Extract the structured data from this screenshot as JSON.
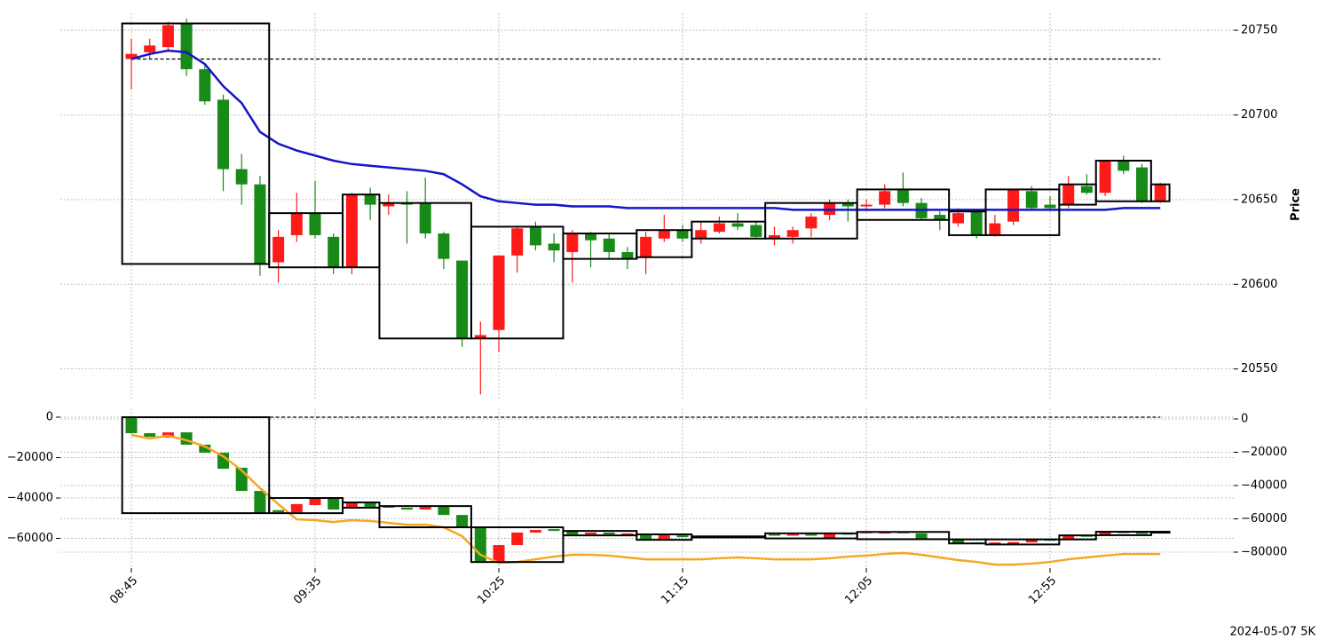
{
  "footer": "2024-05-07 5K",
  "chart_data": [
    {
      "type": "candlestick",
      "ylabel": "Price",
      "ylim": [
        20532,
        20760
      ],
      "yticks": [
        20550,
        20600,
        20650,
        20700,
        20750
      ],
      "grid": true,
      "up_color": "#ff1a1a",
      "down_color": "#178a17",
      "open": [
        20733,
        20737,
        20740,
        20754,
        20727,
        20709,
        20668,
        20659,
        20613,
        20629,
        20642,
        20628,
        20610,
        20653,
        20646,
        20648,
        20648,
        20630,
        20614,
        20568,
        20573,
        20617,
        20634,
        20624,
        20619,
        20630,
        20627,
        20619,
        20616,
        20627,
        20632,
        20627,
        20631,
        20636,
        20635,
        20627,
        20628,
        20633,
        20641,
        20648,
        20646,
        20647,
        20656,
        20648,
        20641,
        20636,
        20643,
        20629,
        20637,
        20655,
        20647,
        20647,
        20658,
        20654,
        20673,
        20669,
        20649
      ],
      "high": [
        20745,
        20745,
        20755,
        20757,
        20729,
        20712,
        20677,
        20664,
        20632,
        20654,
        20661,
        20630,
        20654,
        20657,
        20653,
        20655,
        20663,
        20631,
        20614,
        20578,
        20617,
        20634,
        20637,
        20630,
        20632,
        20631,
        20630,
        20622,
        20631,
        20641,
        20635,
        20637,
        20640,
        20642,
        20637,
        20634,
        20634,
        20642,
        20650,
        20650,
        20650,
        20659,
        20666,
        20651,
        20643,
        20645,
        20644,
        20641,
        20656,
        20658,
        20652,
        20664,
        20665,
        20673,
        20676,
        20671,
        20660
      ],
      "low": [
        20715,
        20733,
        20738,
        20723,
        20706,
        20655,
        20647,
        20605,
        20601,
        20625,
        20627,
        20606,
        20606,
        20638,
        20641,
        20624,
        20627,
        20609,
        20563,
        20535,
        20560,
        20607,
        20620,
        20613,
        20601,
        20610,
        20615,
        20609,
        20606,
        20625,
        20625,
        20624,
        20630,
        20632,
        20627,
        20623,
        20624,
        20628,
        20638,
        20637,
        20643,
        20645,
        20646,
        20638,
        20632,
        20634,
        20627,
        20628,
        20635,
        20644,
        20643,
        20645,
        20653,
        20652,
        20665,
        20648,
        20648
      ],
      "close": [
        20736,
        20741,
        20753,
        20727,
        20708,
        20668,
        20659,
        20612,
        20628,
        20642,
        20629,
        20610,
        20653,
        20647,
        20648,
        20647,
        20630,
        20615,
        20568,
        20570,
        20617,
        20633,
        20623,
        20620,
        20630,
        20626,
        20619,
        20615,
        20628,
        20632,
        20627,
        20632,
        20636,
        20634,
        20628,
        20629,
        20632,
        20640,
        20648,
        20646,
        20647,
        20655,
        20648,
        20639,
        20638,
        20642,
        20629,
        20636,
        20656,
        20645,
        20645,
        20659,
        20654,
        20673,
        20667,
        20649,
        20659
      ],
      "lines": [
        {
          "color": "#1414c8",
          "values": [
            20733,
            20736,
            20738,
            20737,
            20730,
            20717,
            20707,
            20690,
            20683,
            20679,
            20676,
            20673,
            20671,
            20670,
            20669,
            20668,
            20667,
            20665,
            20659,
            20652,
            20649,
            20648,
            20647,
            20647,
            20646,
            20646,
            20646,
            20645,
            20645,
            20645,
            20645,
            20645,
            20645,
            20645,
            20645,
            20645,
            20644,
            20644,
            20644,
            20644,
            20644,
            20644,
            20644,
            20644,
            20644,
            20644,
            20644,
            20644,
            20644,
            20644,
            20644,
            20644,
            20644,
            20644,
            20645,
            20645,
            20645
          ]
        }
      ],
      "hline": 20733,
      "boxes": [
        {
          "from": 0,
          "to": 7,
          "top": 20754,
          "bottom": 20612
        },
        {
          "from": 8,
          "to": 11,
          "top": 20642,
          "bottom": 20610
        },
        {
          "from": 12,
          "to": 13,
          "top": 20653,
          "bottom": 20610
        },
        {
          "from": 14,
          "to": 18,
          "top": 20648,
          "bottom": 20568
        },
        {
          "from": 19,
          "to": 23,
          "top": 20634,
          "bottom": 20568
        },
        {
          "from": 24,
          "to": 27,
          "top": 20630,
          "bottom": 20615
        },
        {
          "from": 28,
          "to": 30,
          "top": 20632,
          "bottom": 20616
        },
        {
          "from": 31,
          "to": 34,
          "top": 20637,
          "bottom": 20627
        },
        {
          "from": 35,
          "to": 39,
          "top": 20648,
          "bottom": 20627
        },
        {
          "from": 40,
          "to": 44,
          "top": 20656,
          "bottom": 20638
        },
        {
          "from": 45,
          "to": 46,
          "top": 20643,
          "bottom": 20629
        },
        {
          "from": 47,
          "to": 50,
          "top": 20656,
          "bottom": 20629
        },
        {
          "from": 51,
          "to": 52,
          "top": 20659,
          "bottom": 20647
        },
        {
          "from": 53,
          "to": 55,
          "top": 20673,
          "bottom": 20649
        },
        {
          "from": 56,
          "to": 56,
          "top": 20659,
          "bottom": 20649
        }
      ]
    },
    {
      "type": "candlestick",
      "categories": [
        "08:45",
        null,
        null,
        null,
        null,
        null,
        null,
        null,
        null,
        null,
        "09:35",
        null,
        null,
        null,
        null,
        null,
        null,
        null,
        null,
        null,
        "10:25",
        null,
        null,
        null,
        null,
        null,
        null,
        null,
        null,
        null,
        "11:15",
        null,
        null,
        null,
        null,
        null,
        null,
        null,
        null,
        null,
        "12:05",
        null,
        null,
        null,
        null,
        null,
        null,
        null,
        null,
        null,
        "12:55",
        null,
        null,
        null,
        null,
        null,
        null
      ],
      "ylim": [
        -74700,
        4400
      ],
      "yticks": [
        0,
        {
          "value": -20000,
          "label": "−20000"
        },
        {
          "value": -40000,
          "label": "−40000"
        },
        {
          "value": -60000,
          "label": "−60000"
        }
      ],
      "y2lim": [
        -89600,
        6400
      ],
      "y2ticks": [
        0,
        {
          "value": -20000,
          "label": "−20000"
        },
        {
          "value": -40000,
          "label": "−40000"
        },
        {
          "value": -60000,
          "label": "−60000"
        },
        {
          "value": -80000,
          "label": "−80000"
        }
      ],
      "grid": true,
      "up_color": "#ff1a1a",
      "down_color": "#178a17",
      "open": [
        0,
        -7900,
        -10100,
        -7500,
        -13600,
        -17600,
        -25000,
        -36500,
        -46000,
        -47000,
        -43500,
        -40000,
        -44800,
        -42600,
        -44000,
        -44800,
        -45700,
        -44400,
        -48400,
        -54500,
        -71200,
        -63300,
        -57100,
        -55400,
        -56300,
        -58000,
        -57100,
        -58500,
        -58000,
        -60700,
        -58500,
        -59000,
        -59500,
        -59000,
        -59400,
        -58000,
        -58400,
        -58000,
        -60000,
        -57500,
        -57200,
        -57600,
        -56800,
        -57500,
        -60000,
        -60500,
        -62000,
        -62500,
        -63000,
        -62000,
        -60500,
        -60500,
        -58500,
        -58400,
        -56700,
        -57100,
        -56900
      ],
      "close": [
        -7900,
        -9700,
        -7500,
        -13600,
        -17600,
        -25500,
        -36500,
        -47500,
        -47000,
        -43000,
        -40000,
        -45700,
        -42200,
        -44400,
        -44800,
        -45700,
        -44400,
        -48400,
        -54500,
        -71700,
        -63300,
        -57100,
        -55800,
        -56300,
        -58000,
        -57100,
        -58000,
        -57500,
        -60700,
        -58000,
        -59400,
        -59500,
        -59000,
        -59400,
        -59000,
        -58400,
        -58000,
        -58400,
        -57500,
        -58000,
        -56800,
        -56800,
        -57200,
        -60000,
        -60400,
        -62500,
        -62400,
        -62000,
        -61800,
        -60500,
        -61000,
        -58500,
        -58900,
        -56700,
        -57100,
        -57400,
        -56700
      ],
      "lines": [
        {
          "color": "#f5a623",
          "axis": "y2",
          "values": [
            -9600,
            -11700,
            -10100,
            -12800,
            -16500,
            -22400,
            -30900,
            -41600,
            -51200,
            -60300,
            -60800,
            -61900,
            -60800,
            -61300,
            -62400,
            -63500,
            -63500,
            -65100,
            -70400,
            -81600,
            -86400,
            -85900,
            -84300,
            -82700,
            -81600,
            -81600,
            -82100,
            -83200,
            -84300,
            -84300,
            -84300,
            -84300,
            -83700,
            -83200,
            -83700,
            -84300,
            -84300,
            -84300,
            -83700,
            -82700,
            -82100,
            -81100,
            -80500,
            -81600,
            -83200,
            -84800,
            -85900,
            -87500,
            -87500,
            -86900,
            -85900,
            -84300,
            -83200,
            -82100,
            -81100,
            -81100,
            -81100
          ]
        }
      ],
      "hline": 0,
      "boxes": [
        {
          "from": 0,
          "to": 7,
          "top": 0,
          "bottom": -47500
        },
        {
          "from": 8,
          "to": 11,
          "top": -40000,
          "bottom": -47500
        },
        {
          "from": 12,
          "to": 13,
          "top": -42200,
          "bottom": -44800
        },
        {
          "from": 14,
          "to": 18,
          "top": -44000,
          "bottom": -54500
        },
        {
          "from": 19,
          "to": 23,
          "top": -54500,
          "bottom": -71700
        },
        {
          "from": 24,
          "to": 27,
          "top": -56300,
          "bottom": -58500
        },
        {
          "from": 28,
          "to": 30,
          "top": -58000,
          "bottom": -60700
        },
        {
          "from": 31,
          "to": 34,
          "top": -59000,
          "bottom": -59500
        },
        {
          "from": 35,
          "to": 39,
          "top": -57500,
          "bottom": -60000
        },
        {
          "from": 40,
          "to": 44,
          "top": -56800,
          "bottom": -60400
        },
        {
          "from": 45,
          "to": 46,
          "top": -60500,
          "bottom": -62500
        },
        {
          "from": 47,
          "to": 50,
          "top": -60500,
          "bottom": -63000
        },
        {
          "from": 51,
          "to": 52,
          "top": -58500,
          "bottom": -60500
        },
        {
          "from": 53,
          "to": 55,
          "top": -56700,
          "bottom": -58400
        },
        {
          "from": 56,
          "to": 56,
          "top": -56700,
          "bottom": -56900
        }
      ]
    }
  ]
}
